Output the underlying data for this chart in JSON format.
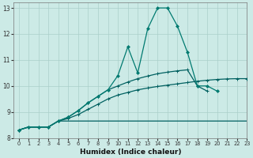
{
  "bg_color": "#cceae6",
  "grid_color": "#aacfca",
  "line_color_dark": "#006060",
  "line_color_mid": "#007a70",
  "xlabel": "Humidex (Indice chaleur)",
  "xlim": [
    -0.5,
    23
  ],
  "ylim": [
    8.0,
    13.2
  ],
  "yticks": [
    8,
    9,
    10,
    11,
    12,
    13
  ],
  "xticks": [
    0,
    1,
    2,
    3,
    4,
    5,
    6,
    7,
    8,
    9,
    10,
    11,
    12,
    13,
    14,
    15,
    16,
    17,
    18,
    19,
    20,
    21,
    22,
    23
  ],
  "x_all": [
    0,
    1,
    2,
    3,
    4,
    5,
    6,
    7,
    8,
    9,
    10,
    11,
    12,
    13,
    14,
    15,
    16,
    17,
    18,
    19,
    20,
    21,
    22,
    23
  ],
  "line_flat": [
    8.3,
    8.42,
    8.42,
    8.42,
    8.65,
    8.65,
    8.65,
    8.65,
    8.65,
    8.65,
    8.65,
    8.65,
    8.65,
    8.65,
    8.65,
    8.65,
    8.65,
    8.65,
    8.65,
    8.65,
    8.65,
    8.65,
    8.65,
    8.65
  ],
  "line_diag": [
    8.3,
    8.42,
    8.42,
    8.42,
    8.65,
    8.75,
    8.9,
    9.1,
    9.3,
    9.5,
    9.65,
    9.75,
    9.85,
    9.92,
    9.98,
    10.03,
    10.08,
    10.13,
    10.18,
    10.22,
    10.25,
    10.27,
    10.28,
    10.28
  ],
  "line_mid": [
    8.3,
    8.42,
    8.42,
    8.42,
    8.65,
    8.8,
    9.05,
    9.35,
    9.6,
    9.85,
    10.0,
    10.15,
    10.28,
    10.38,
    10.47,
    10.53,
    10.58,
    10.62,
    10.0,
    9.8,
    null,
    null,
    null,
    null
  ],
  "line_spike_x": [
    0,
    1,
    2,
    3,
    4,
    5,
    6,
    7,
    8,
    9,
    10,
    11,
    12,
    13,
    14,
    15,
    16,
    17,
    18,
    19,
    20
  ],
  "line_spike": [
    8.3,
    8.42,
    8.42,
    8.42,
    8.65,
    8.8,
    9.05,
    9.35,
    9.6,
    9.85,
    10.4,
    11.5,
    10.5,
    12.2,
    13.0,
    13.0,
    12.3,
    11.3,
    10.0,
    10.0,
    9.8
  ]
}
